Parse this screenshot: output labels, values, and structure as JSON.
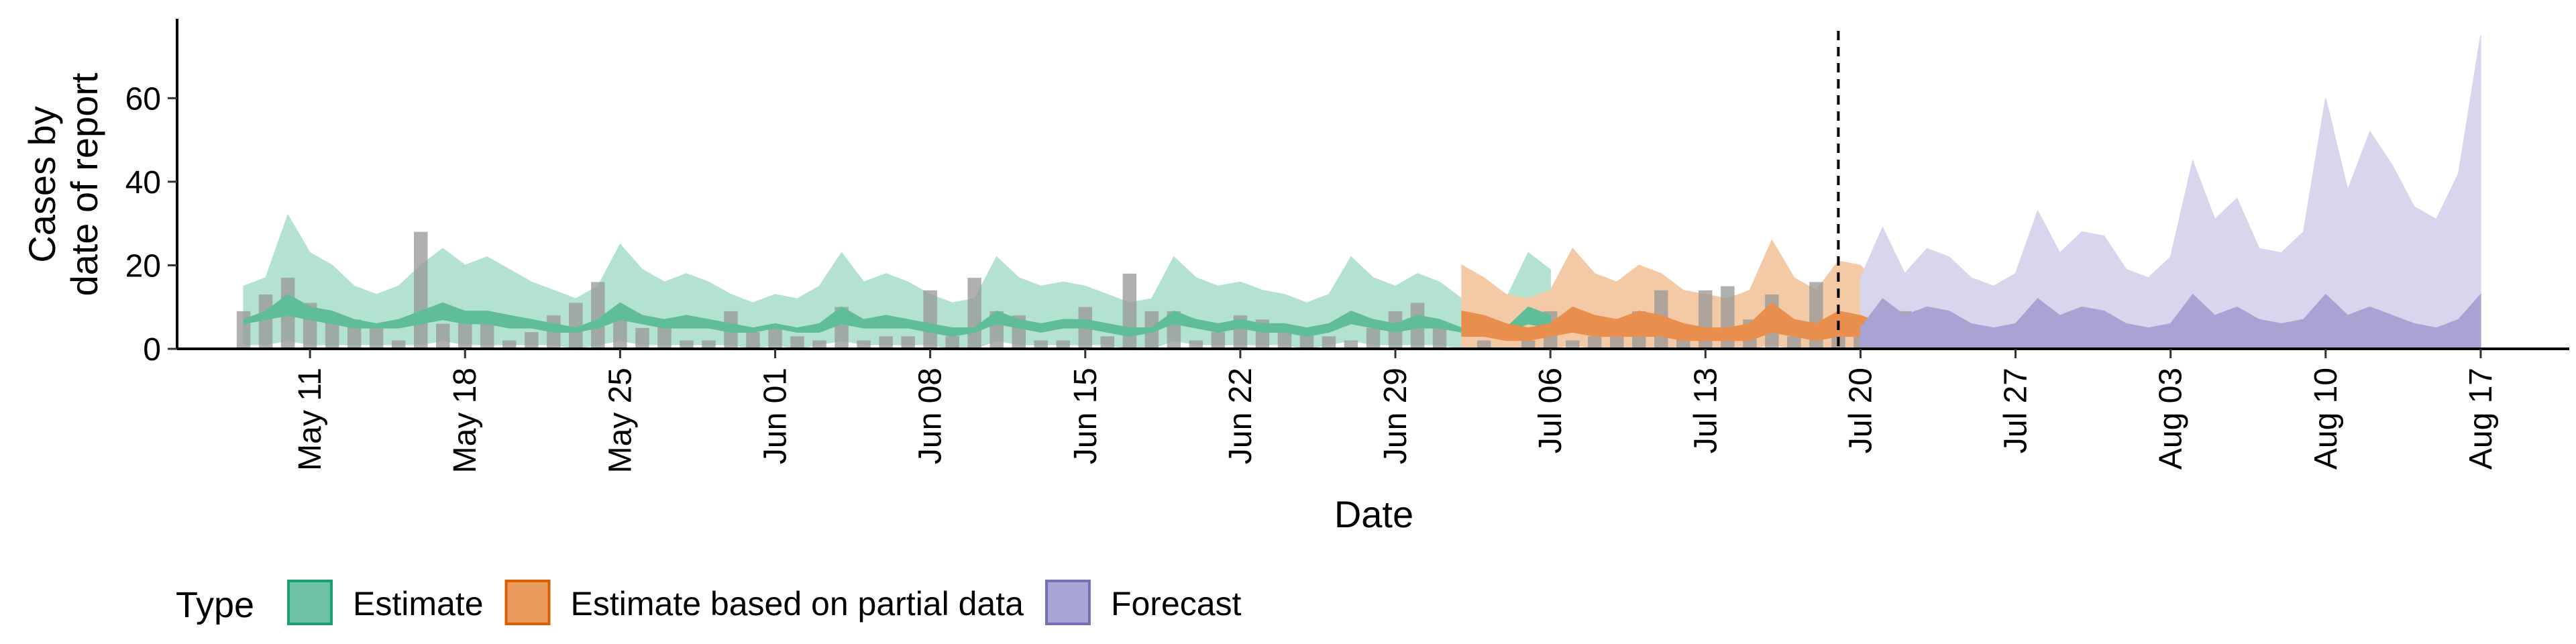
{
  "chart_data": {
    "type": "area",
    "xlabel": "Date",
    "ylabel_lines": [
      "Cases by",
      "date of report"
    ],
    "ylim": [
      0,
      79
    ],
    "yticks": [
      0,
      20,
      40,
      60
    ],
    "x_range": [
      "2020-05-05",
      "2020-08-21"
    ],
    "x_ticks": [
      {
        "date": "2020-05-11",
        "label": "May 11"
      },
      {
        "date": "2020-05-18",
        "label": "May 18"
      },
      {
        "date": "2020-05-25",
        "label": "May 25"
      },
      {
        "date": "2020-06-01",
        "label": "Jun 01"
      },
      {
        "date": "2020-06-08",
        "label": "Jun 08"
      },
      {
        "date": "2020-06-15",
        "label": "Jun 15"
      },
      {
        "date": "2020-06-22",
        "label": "Jun 22"
      },
      {
        "date": "2020-06-29",
        "label": "Jun 29"
      },
      {
        "date": "2020-07-06",
        "label": "Jul 06"
      },
      {
        "date": "2020-07-13",
        "label": "Jul 13"
      },
      {
        "date": "2020-07-20",
        "label": "Jul 20"
      },
      {
        "date": "2020-07-27",
        "label": "Jul 27"
      },
      {
        "date": "2020-08-03",
        "label": "Aug 03"
      },
      {
        "date": "2020-08-10",
        "label": "Aug 10"
      },
      {
        "date": "2020-08-17",
        "label": "Aug 17"
      }
    ],
    "vline_date": "2020-07-19",
    "legend": {
      "title": "Type",
      "position": "bottom",
      "entries": [
        {
          "label": "Estimate",
          "fill": "#6cc2a3",
          "stroke": "#1b9e77"
        },
        {
          "label": "Estimate based on partial data",
          "fill": "#eb9a5e",
          "stroke": "#d95f02"
        },
        {
          "label": "Forecast",
          "fill": "#a8a4d4",
          "stroke": "#7570b3"
        }
      ]
    },
    "colors": {
      "estimate_outer": "#b3e2d0",
      "estimate_inner": "#5fbd97",
      "partial_outer": "#f4c9a6",
      "partial_inner": "#e98f4d",
      "forecast_outer": "#d8d6ec",
      "forecast_inner": "#a8a3d3",
      "bars": "#9a9a9a"
    },
    "series": [
      {
        "name": "Estimate",
        "start": "2020-05-08",
        "upper": [
          15,
          17,
          32,
          23,
          20,
          15,
          13,
          15,
          20,
          24,
          20,
          22,
          19,
          16,
          14,
          12,
          15,
          25,
          19,
          16,
          18,
          16,
          13,
          11,
          13,
          12,
          15,
          23,
          16,
          18,
          16,
          13,
          11,
          12,
          22,
          17,
          15,
          16,
          15,
          13,
          11,
          12,
          22,
          17,
          15,
          16,
          14,
          13,
          11,
          13,
          22,
          17,
          15,
          18,
          16,
          12,
          11,
          12,
          23,
          19
        ],
        "lower50": [
          6,
          7,
          8,
          7,
          6,
          5,
          5,
          5,
          6,
          7,
          6,
          6,
          5,
          5,
          4,
          4,
          5,
          7,
          6,
          5,
          5,
          5,
          4,
          4,
          5,
          4,
          4,
          6,
          5,
          5,
          5,
          4,
          3,
          4,
          6,
          5,
          4,
          5,
          5,
          4,
          3,
          4,
          6,
          5,
          4,
          5,
          4,
          4,
          3,
          4,
          6,
          5,
          4,
          5,
          5,
          4,
          3,
          4,
          6,
          5
        ],
        "upper50": [
          7,
          9,
          13,
          10,
          9,
          7,
          6,
          7,
          9,
          11,
          9,
          9,
          8,
          7,
          6,
          5,
          7,
          11,
          8,
          7,
          8,
          7,
          6,
          5,
          6,
          5,
          6,
          10,
          7,
          8,
          7,
          6,
          5,
          5,
          9,
          7,
          6,
          7,
          7,
          6,
          5,
          5,
          9,
          7,
          6,
          7,
          6,
          6,
          5,
          6,
          9,
          7,
          6,
          8,
          7,
          5,
          5,
          5,
          10,
          8
        ],
        "lower": [
          1,
          1,
          2,
          1,
          1,
          1,
          1,
          1,
          1,
          2,
          1,
          1,
          1,
          1,
          1,
          0,
          1,
          2,
          1,
          1,
          1,
          1,
          1,
          0,
          1,
          0,
          1,
          2,
          1,
          1,
          1,
          1,
          0,
          0,
          2,
          1,
          1,
          1,
          1,
          1,
          0,
          0,
          2,
          1,
          1,
          1,
          1,
          1,
          0,
          1,
          2,
          1,
          1,
          1,
          1,
          0,
          0,
          0,
          2,
          1
        ]
      },
      {
        "name": "Estimate based on partial data",
        "start": "2020-07-02",
        "upper": [
          20,
          17,
          13,
          12,
          14,
          24,
          18,
          16,
          20,
          18,
          14,
          13,
          12,
          14,
          26,
          17,
          14,
          21,
          20,
          14,
          12
        ],
        "lower50": [
          3,
          3,
          2,
          2,
          3,
          4,
          3,
          3,
          3,
          3,
          2,
          2,
          2,
          2,
          4,
          3,
          2,
          3,
          3,
          2,
          2
        ],
        "upper50": [
          9,
          8,
          6,
          5,
          6,
          10,
          8,
          7,
          9,
          8,
          6,
          5,
          5,
          6,
          11,
          7,
          6,
          9,
          8,
          6,
          5
        ],
        "lower": [
          0,
          0,
          0,
          0,
          0,
          1,
          0,
          0,
          0,
          0,
          0,
          0,
          0,
          0,
          1,
          0,
          0,
          0,
          0,
          0,
          0
        ]
      },
      {
        "name": "Forecast",
        "start": "2020-07-20",
        "upper": [
          17,
          29,
          18,
          24,
          22,
          17,
          15,
          18,
          33,
          23,
          28,
          27,
          19,
          17,
          22,
          45,
          31,
          36,
          24,
          23,
          28,
          60,
          38,
          52,
          44,
          34,
          31,
          42,
          75
        ],
        "lower50": [
          0,
          0,
          0,
          0,
          0,
          0,
          0,
          0,
          0,
          0,
          0,
          0,
          0,
          0,
          0,
          0,
          0,
          0,
          0,
          0,
          0,
          0,
          0,
          0,
          0,
          0,
          0,
          0,
          0
        ],
        "upper50": [
          5,
          12,
          8,
          10,
          9,
          6,
          5,
          6,
          12,
          8,
          10,
          9,
          6,
          5,
          6,
          13,
          8,
          10,
          7,
          6,
          7,
          13,
          8,
          10,
          8,
          6,
          5,
          7,
          13
        ],
        "lower": [
          0,
          1,
          0,
          1,
          1,
          0,
          0,
          0,
          1,
          1,
          1,
          1,
          0,
          0,
          0,
          1,
          0,
          1,
          0,
          0,
          0,
          1,
          0,
          1,
          0,
          0,
          0,
          0,
          0
        ]
      }
    ],
    "reported_cases": {
      "start": "2020-05-08",
      "values": [
        9,
        13,
        17,
        11,
        8,
        7,
        6,
        2,
        28,
        6,
        7,
        6,
        2,
        4,
        8,
        11,
        16,
        10,
        5,
        7,
        2,
        2,
        9,
        4,
        5,
        3,
        2,
        10,
        2,
        3,
        3,
        14,
        3,
        17,
        9,
        8,
        2,
        2,
        10,
        3,
        18,
        9,
        9,
        2,
        4,
        8,
        7,
        5,
        5,
        3,
        2,
        5,
        9,
        11,
        6,
        0,
        2,
        0,
        2,
        9,
        2,
        3,
        3,
        9,
        14,
        5,
        14,
        15,
        7,
        13,
        3,
        16,
        4,
        6,
        4,
        9,
        3
      ]
    }
  }
}
